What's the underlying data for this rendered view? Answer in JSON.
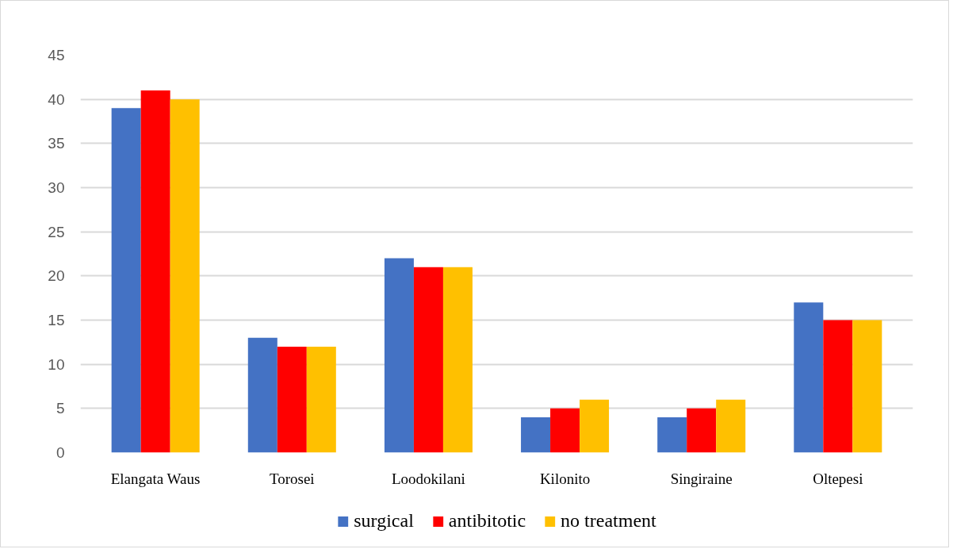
{
  "chart_data": {
    "type": "bar",
    "categories": [
      "Elangata Waus",
      "Torosei",
      "Loodokilani",
      "Kilonito",
      "Singiraine",
      "Oltepesi"
    ],
    "series": [
      {
        "name": "surgical",
        "color": "#4472c4",
        "values": [
          39,
          13,
          22,
          4,
          4,
          17
        ]
      },
      {
        "name": "antibitotic",
        "color": "#ff0000",
        "values": [
          41,
          12,
          21,
          5,
          5,
          15
        ]
      },
      {
        "name": "no treatment",
        "color": "#ffc000",
        "values": [
          40,
          12,
          21,
          6,
          6,
          15
        ]
      }
    ],
    "ylim": [
      0,
      45
    ],
    "yticks": [
      0,
      5,
      10,
      15,
      20,
      25,
      30,
      35,
      40,
      45
    ],
    "grid": "y",
    "legend": "bottom"
  }
}
